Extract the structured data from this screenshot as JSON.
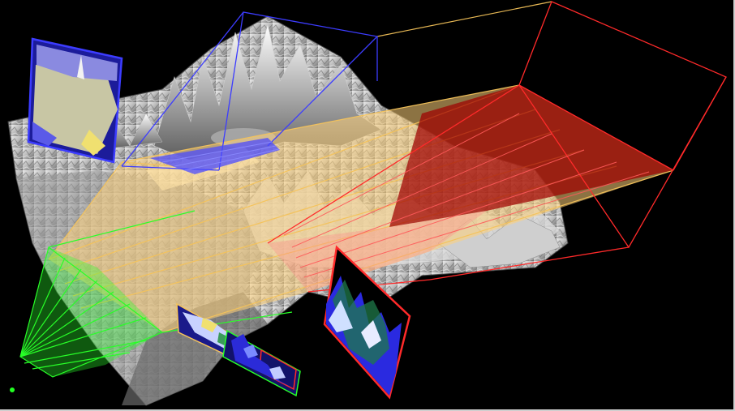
{
  "scene": {
    "background": "#000000",
    "terrain": {
      "highlight": "#f2f2f2",
      "shade": "#6e6e6e",
      "dark": "#2a2a2a"
    },
    "frusta": [
      {
        "name": "blue-camera-frustum",
        "color": "#3c3cff",
        "fill": "#4b4bff"
      },
      {
        "name": "yellow-camera-frustum",
        "color": "#f5c35a",
        "fill": "#ffd27a"
      },
      {
        "name": "red-camera-frustum",
        "color": "#ff2a2a",
        "fill": "#b00000"
      },
      {
        "name": "green-camera-frustum",
        "color": "#28ff28",
        "fill": "#2cff2c"
      }
    ],
    "indicator": {
      "color": "#22ff22",
      "icon": "status-dot-icon"
    }
  }
}
